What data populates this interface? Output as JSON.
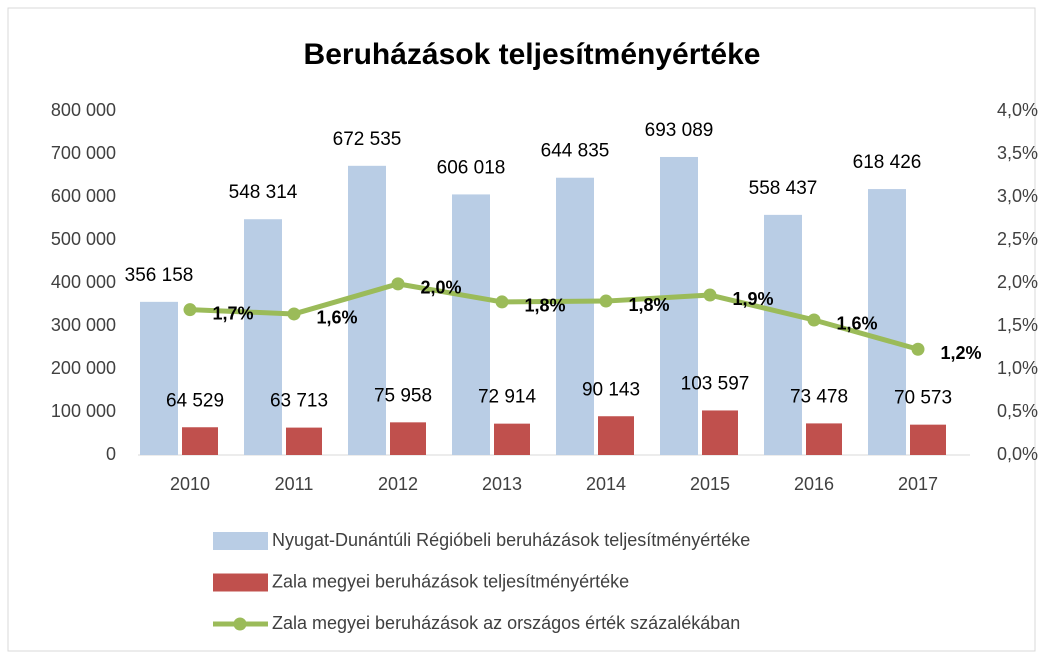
{
  "chart_data": {
    "type": "bar",
    "title": "Beruházások teljesítményértéke",
    "categories": [
      "2010",
      "2011",
      "2012",
      "2013",
      "2014",
      "2015",
      "2016",
      "2017"
    ],
    "series": [
      {
        "name": "Nyugat-Dunántúli Régióbeli beruházások teljesítményértéke",
        "type": "bar",
        "color": "#b9cde5",
        "values": [
          356158,
          548314,
          672535,
          606018,
          644835,
          693089,
          558437,
          618426
        ],
        "value_labels": [
          "356 158",
          "548 314",
          "672 535",
          "606 018",
          "644 835",
          "693 089",
          "558 437",
          "618 426"
        ]
      },
      {
        "name": "Zala megyei beruházások teljesítményértéke",
        "type": "bar",
        "color": "#c0504d",
        "values": [
          64529,
          63713,
          75958,
          72914,
          90143,
          103597,
          73478,
          70573
        ],
        "value_labels": [
          "64 529",
          "63 713",
          "75 958",
          "72 914",
          "90 143",
          "103 597",
          "73 478",
          "70 573"
        ]
      },
      {
        "name": "Zala megyei beruházások az országos érték százalékában",
        "type": "line",
        "axis": "y2",
        "color": "#9bbb59",
        "values": [
          1.69,
          1.64,
          1.99,
          1.78,
          1.79,
          1.86,
          1.57,
          1.23
        ],
        "value_labels": [
          "1,7%",
          "1,6%",
          "2,0%",
          "1,8%",
          "1,8%",
          "1,9%",
          "1,6%",
          "1,2%"
        ]
      }
    ],
    "ylim": [
      0,
      800000
    ],
    "yticks": [
      0,
      {
        "value": 100000,
        "label": "100 000"
      },
      {
        "value": 200000,
        "label": "200 000"
      },
      {
        "value": 300000,
        "label": "300 000"
      },
      {
        "value": 400000,
        "label": "400 000"
      },
      {
        "value": 500000,
        "label": "500 000"
      },
      {
        "value": 600000,
        "label": "600 000"
      },
      {
        "value": 700000,
        "label": "700 000"
      },
      {
        "value": 800000,
        "label": "800 000"
      }
    ],
    "y2lim": [
      0,
      4
    ],
    "y2ticks": [
      {
        "value": 0,
        "label": "0,0%"
      },
      {
        "value": 0.5,
        "label": "0,5%"
      },
      {
        "value": 1,
        "label": "1,0%"
      },
      {
        "value": 1.5,
        "label": "1,5%"
      },
      {
        "value": 2,
        "label": "2,0%"
      },
      {
        "value": 2.5,
        "label": "2,5%"
      },
      {
        "value": 3,
        "label": "3,0%"
      },
      {
        "value": 3.5,
        "label": "3,5%"
      },
      {
        "value": 4,
        "label": "4,0%"
      }
    ],
    "legend": "bottom"
  }
}
